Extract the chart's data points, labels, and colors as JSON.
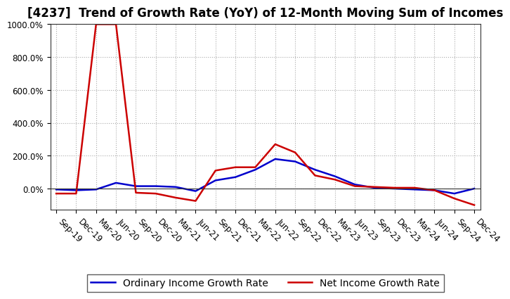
{
  "title": "[4237]  Trend of Growth Rate (YoY) of 12-Month Moving Sum of Incomes",
  "x_labels": [
    "Sep-19",
    "Dec-19",
    "Mar-20",
    "Jun-20",
    "Sep-20",
    "Dec-20",
    "Mar-21",
    "Jun-21",
    "Sep-21",
    "Dec-21",
    "Mar-22",
    "Jun-22",
    "Sep-22",
    "Dec-22",
    "Mar-23",
    "Jun-23",
    "Sep-23",
    "Dec-23",
    "Mar-24",
    "Jun-24",
    "Sep-24",
    "Dec-24"
  ],
  "ordinary_income": [
    -5,
    -10,
    -5,
    35,
    15,
    15,
    10,
    -15,
    50,
    70,
    115,
    180,
    165,
    115,
    75,
    25,
    5,
    0,
    -5,
    -10,
    -30,
    0
  ],
  "net_income": [
    -30,
    -30,
    1000,
    1000,
    -25,
    -30,
    -55,
    -75,
    110,
    130,
    130,
    270,
    220,
    80,
    55,
    15,
    10,
    5,
    5,
    -10,
    -60,
    -100
  ],
  "ylim_min": -130,
  "ylim_max": 1000,
  "yticks": [
    0,
    200,
    400,
    600,
    800,
    1000
  ],
  "ytick_labels": [
    "0.0%",
    "200.0%",
    "400.0%",
    "600.0%",
    "800.0%",
    "1000.0%"
  ],
  "ordinary_color": "#0000cc",
  "net_color": "#cc0000",
  "background_color": "#ffffff",
  "grid_color": "#aaaaaa",
  "legend_ordinary": "Ordinary Income Growth Rate",
  "legend_net": "Net Income Growth Rate",
  "title_fontsize": 12,
  "tick_fontsize": 8.5,
  "legend_fontsize": 10
}
